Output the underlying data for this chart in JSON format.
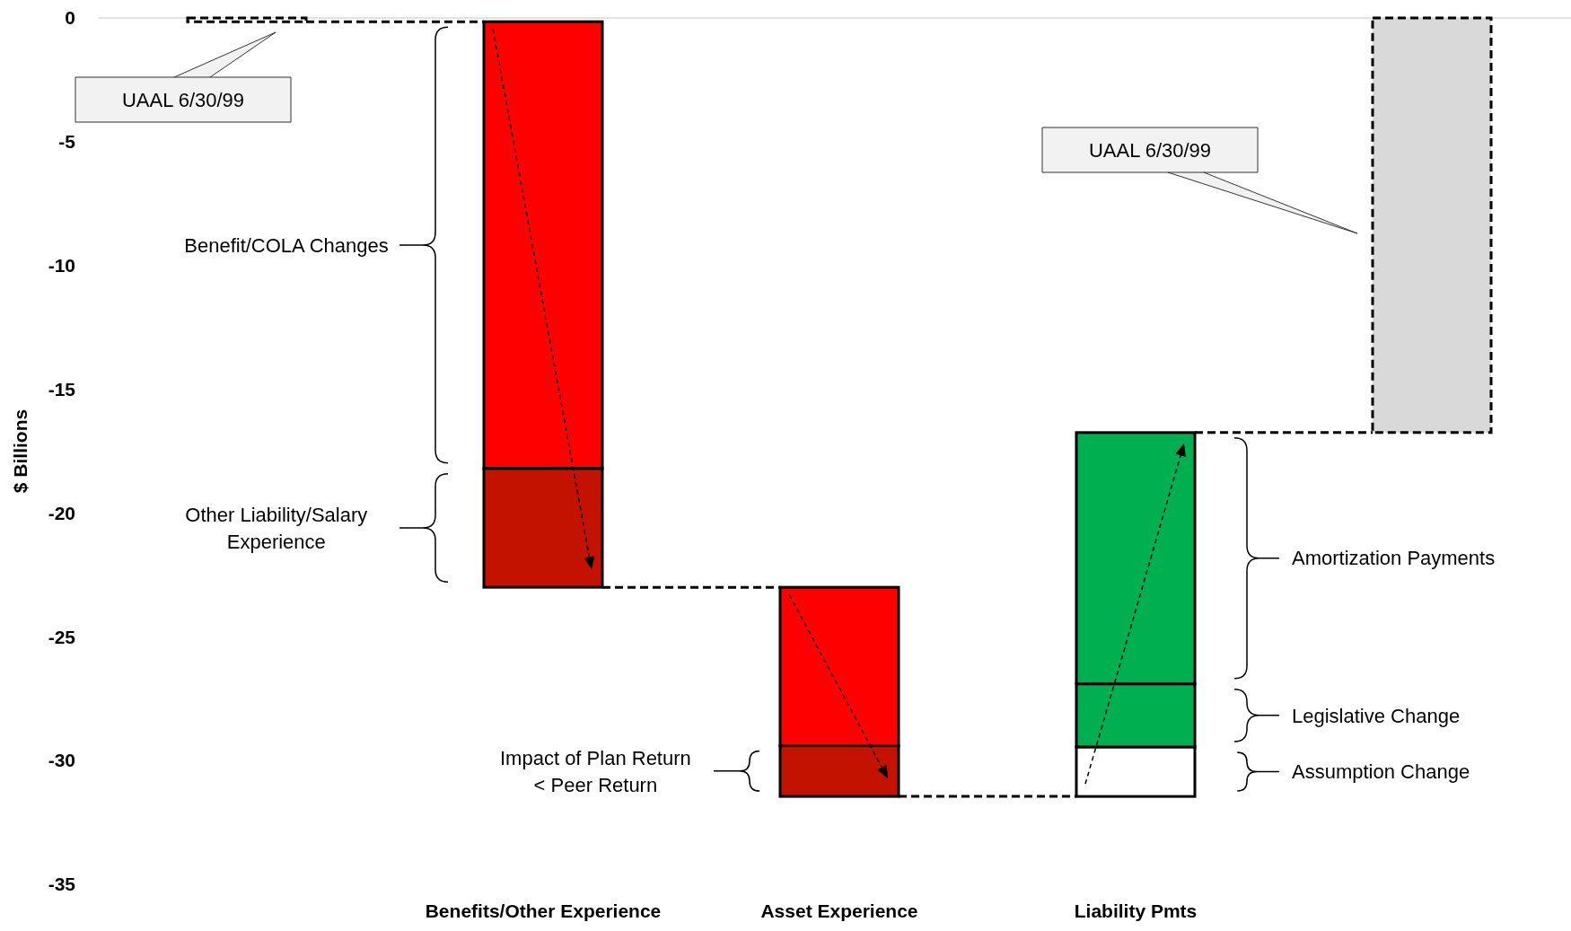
{
  "chart_data": {
    "type": "bar",
    "ylabel": "$ Billions",
    "categories": [
      null,
      "Benefits/Other Experience",
      "Asset Experience",
      "Liability Pmts",
      null
    ],
    "series": [
      {
        "values": [
          -0.15,
          null,
          null,
          null,
          -16.75
        ],
        "base": [
          0,
          null,
          null,
          null,
          0
        ],
        "colors": [
          "#ffffff",
          null,
          null,
          null,
          "#d9d9d9"
        ],
        "line_style": "dashed"
      },
      {
        "values": [
          null,
          -18.05,
          -6.4,
          2.0,
          null
        ],
        "base": [
          null,
          -0.15,
          -23.0,
          -31.45,
          null
        ],
        "colors": [
          null,
          "#ff0000",
          "#ff0000",
          "#ffffff",
          null
        ]
      },
      {
        "values": [
          null,
          -4.8,
          -2.05,
          2.55,
          null
        ],
        "base": [
          null,
          -18.2,
          -29.4,
          -29.45,
          null
        ],
        "colors": [
          null,
          "#c41200",
          "#c41200",
          "#00b050",
          null
        ]
      },
      {
        "values": [
          null,
          null,
          null,
          10.15,
          null
        ],
        "base": [
          null,
          null,
          null,
          -26.9,
          null
        ],
        "colors": [
          null,
          null,
          null,
          "#00b050",
          null
        ]
      }
    ],
    "ylim": [
      -35,
      0
    ],
    "yticks": [
      0,
      -5,
      -10,
      -15,
      -20,
      -25,
      -30,
      -35
    ],
    "annotations": [
      "UAAL 6/30/99",
      "Benefit/COLA Changes",
      "Other Liability/Salary Experience",
      "Impact of Plan Return < Peer Return",
      "Amortization Payments",
      "Legislative Change",
      "Assumption Change",
      "UAAL 6/30/99"
    ]
  }
}
